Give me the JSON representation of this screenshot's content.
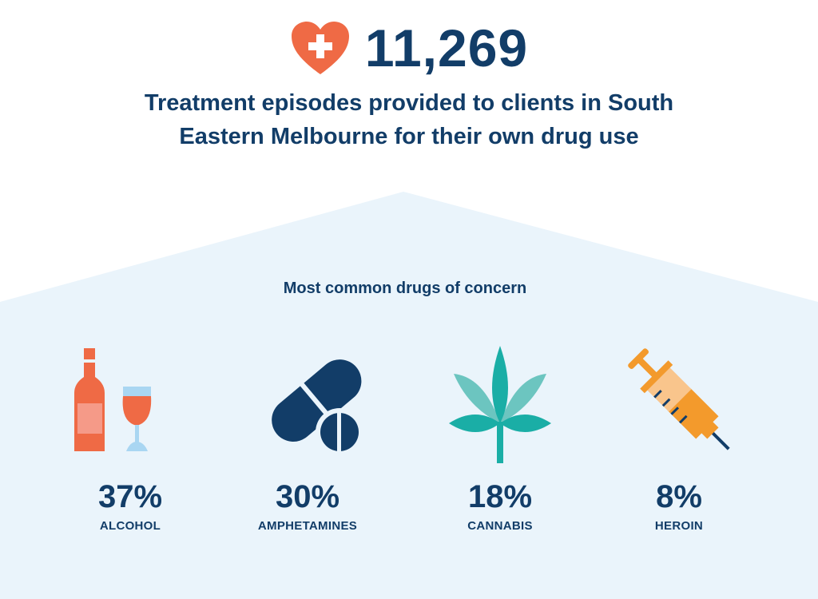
{
  "header": {
    "icon": "heart-plus-icon",
    "total": "11,269",
    "subtitle_line1": "Treatment episodes provided to clients in South",
    "subtitle_line2": "Eastern Melbourne for their own drug use"
  },
  "section": {
    "title": "Most common drugs of concern",
    "items": [
      {
        "label": "ALCOHOL",
        "percent": "37%",
        "value": 37,
        "icon": "alcohol-icon"
      },
      {
        "label": "AMPHETAMINES",
        "percent": "30%",
        "value": 30,
        "icon": "pills-icon"
      },
      {
        "label": "CANNABIS",
        "percent": "18%",
        "value": 18,
        "icon": "cannabis-leaf-icon"
      },
      {
        "label": "HEROIN",
        "percent": "8%",
        "value": 8,
        "icon": "syringe-icon"
      }
    ]
  },
  "colors": {
    "navy": "#123d68",
    "orange": "#ef6a45",
    "teal": "#1aaea6",
    "amber": "#f39a2c",
    "background": "#eaf4fb"
  }
}
